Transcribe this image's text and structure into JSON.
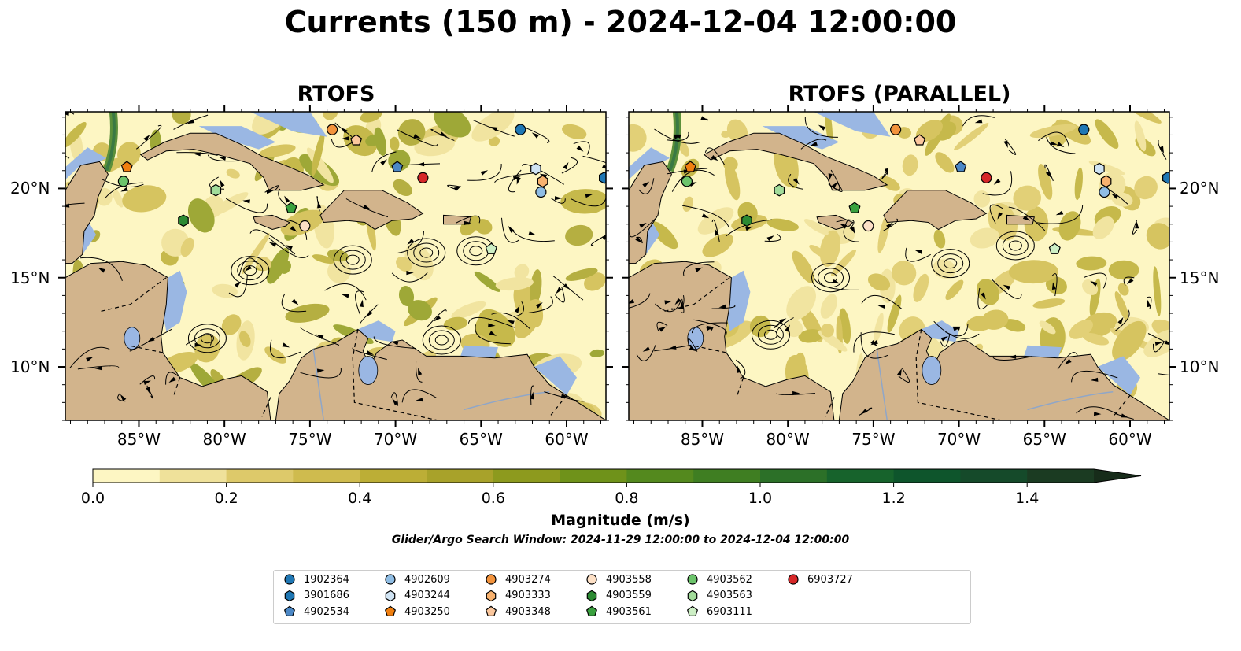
{
  "title": "Currents (150 m) - 2024-12-04 12:00:00",
  "panels": [
    {
      "title": "RTOFS"
    },
    {
      "title": "RTOFS (PARALLEL)"
    }
  ],
  "lon_ticks": [
    "85°W",
    "80°W",
    "75°W",
    "70°W",
    "65°W",
    "60°W"
  ],
  "lat_ticks": [
    "20°N",
    "15°N",
    "10°N"
  ],
  "colorbar": {
    "label": "Magnitude (m/s)",
    "min": 0.0,
    "max": 1.5,
    "extend": "max",
    "tick_labels": [
      "0.0",
      "0.2",
      "0.4",
      "0.6",
      "0.8",
      "1.0",
      "1.2",
      "1.4"
    ],
    "colors": [
      "#fdf6c3",
      "#efe19a",
      "#ddc96a",
      "#cfbb4e",
      "#bcae36",
      "#a8a22a",
      "#8d9a1e",
      "#6f921a",
      "#54891e",
      "#3f7e22",
      "#2c7028",
      "#17632c",
      "#0e552c",
      "#154a2a",
      "#1b3b22",
      "#172c1a"
    ]
  },
  "search_window": "Glider/Argo Search Window: 2024-11-29 12:00:00 to 2024-12-04 12:00:00",
  "map_colors": {
    "land": "#d2b48c",
    "ocean": "#9ab7e3",
    "stream": "#000000"
  },
  "legend": [
    {
      "id": "1902364",
      "marker": "circle",
      "color": "#1f77b4"
    },
    {
      "id": "3901686",
      "marker": "hexagon",
      "color": "#1f77b4"
    },
    {
      "id": "4902534",
      "marker": "pentagon",
      "color": "#4c88c6"
    },
    {
      "id": "4902609",
      "marker": "circle",
      "color": "#8fbde4"
    },
    {
      "id": "4903244",
      "marker": "hexagon",
      "color": "#cfe3f3"
    },
    {
      "id": "4903250",
      "marker": "pentagon",
      "color": "#f07f10"
    },
    {
      "id": "4903274",
      "marker": "circle",
      "color": "#f3933c"
    },
    {
      "id": "4903333",
      "marker": "hexagon",
      "color": "#f8b26f"
    },
    {
      "id": "4903348",
      "marker": "pentagon",
      "color": "#fbc79d"
    },
    {
      "id": "4903558",
      "marker": "circle",
      "color": "#fde0c6"
    },
    {
      "id": "4903559",
      "marker": "hexagon",
      "color": "#2c8a33"
    },
    {
      "id": "4903561",
      "marker": "pentagon",
      "color": "#3aa13f"
    },
    {
      "id": "4903562",
      "marker": "circle",
      "color": "#6cc46b"
    },
    {
      "id": "4903563",
      "marker": "hexagon",
      "color": "#a2dc9a"
    },
    {
      "id": "6903111",
      "marker": "pentagon",
      "color": "#cdefc5"
    },
    {
      "id": "6903727",
      "marker": "circle",
      "color": "#d62728"
    }
  ],
  "floats": [
    {
      "id": "1902364",
      "lon": -62.7,
      "lat": 23.3
    },
    {
      "id": "3901686",
      "lon": -57.8,
      "lat": 20.6
    },
    {
      "id": "4902534",
      "lon": -69.9,
      "lat": 21.2
    },
    {
      "id": "4902609",
      "lon": -61.5,
      "lat": 19.8
    },
    {
      "id": "4903244",
      "lon": -61.8,
      "lat": 21.1
    },
    {
      "id": "4903250",
      "lon": -85.7,
      "lat": 21.2
    },
    {
      "id": "4903274",
      "lon": -73.7,
      "lat": 23.3
    },
    {
      "id": "4903333",
      "lon": -61.4,
      "lat": 20.4
    },
    {
      "id": "4903348",
      "lon": -72.3,
      "lat": 22.7
    },
    {
      "id": "4903558",
      "lon": -75.3,
      "lat": 17.9
    },
    {
      "id": "4903559",
      "lon": -82.4,
      "lat": 18.2
    },
    {
      "id": "4903561",
      "lon": -76.1,
      "lat": 18.9
    },
    {
      "id": "4903562",
      "lon": -85.9,
      "lat": 20.4
    },
    {
      "id": "4903563",
      "lon": -80.5,
      "lat": 19.9
    },
    {
      "id": "6903111",
      "lon": -64.4,
      "lat": 16.6
    },
    {
      "id": "6903727",
      "lon": -68.4,
      "lat": 20.6
    }
  ]
}
